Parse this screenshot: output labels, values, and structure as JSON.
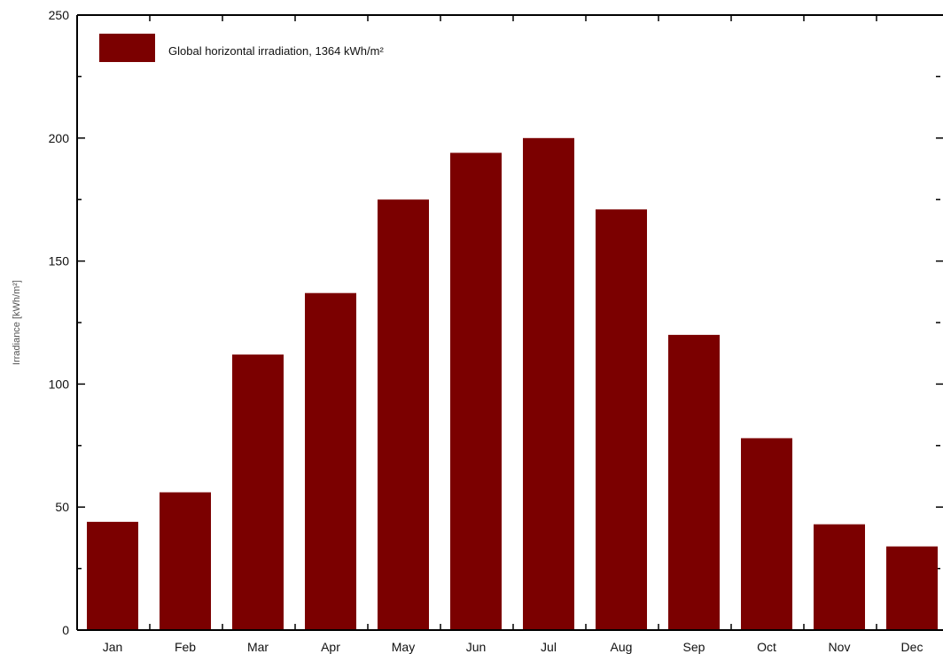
{
  "chart_data": {
    "type": "bar",
    "categories": [
      "Jan",
      "Feb",
      "Mar",
      "Apr",
      "May",
      "Jun",
      "Jul",
      "Aug",
      "Sep",
      "Oct",
      "Nov",
      "Dec"
    ],
    "series": [
      {
        "name": "Global horizontal irradiation,  1364 kWh/m²",
        "values": [
          44,
          56,
          112,
          137,
          175,
          194,
          200,
          171,
          120,
          78,
          43,
          34
        ],
        "color": "#7b0000"
      }
    ],
    "ylabel": "Irradiance    [kWh/m²]",
    "ylim": [
      0,
      250
    ],
    "yticks": [
      0,
      50,
      100,
      150,
      200,
      250
    ],
    "legend_position": "top-left",
    "grid": false
  }
}
